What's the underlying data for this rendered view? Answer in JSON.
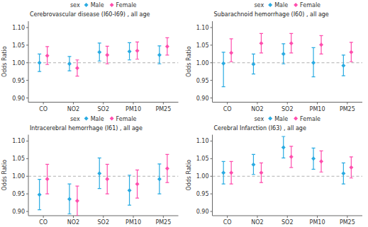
{
  "chart_data": [
    {
      "type": "errorbar",
      "title": "Cerebrovascular disease (I60-I69) , all age",
      "ylabel": "Odds Ratio",
      "categories": [
        "CO",
        "NO2",
        "SO2",
        "PM10",
        "PM25"
      ],
      "series": [
        {
          "name": "Male",
          "color": "#29ABE2",
          "marker": "diamond",
          "values": [
            1.0,
            0.997,
            1.03,
            1.032,
            1.022
          ],
          "lower": [
            0.975,
            0.977,
            1.005,
            1.008,
            0.997
          ],
          "upper": [
            1.025,
            1.018,
            1.056,
            1.057,
            1.048
          ]
        },
        {
          "name": "Female",
          "color": "#FF4DAD",
          "marker": "diamond",
          "values": [
            1.02,
            0.985,
            1.022,
            1.034,
            1.046
          ],
          "lower": [
            0.995,
            0.962,
            0.997,
            1.01,
            1.022
          ],
          "upper": [
            1.046,
            1.008,
            1.047,
            1.059,
            1.071
          ]
        }
      ],
      "ylim": [
        0.888,
        1.118
      ],
      "yticks": [
        {
          "value": 0.9,
          "label": "0.90"
        },
        {
          "value": 0.95,
          "label": "0.95"
        },
        {
          "value": 1.0,
          "label": "1.00"
        },
        {
          "value": 1.05,
          "label": "1.05"
        },
        {
          "value": 1.1,
          "label": "1.10"
        }
      ],
      "reference_line": 1.0,
      "legend": "top",
      "legend_title": "sex",
      "grid": false
    },
    {
      "type": "errorbar",
      "title": "Subarachnoid hemorrhage (I60) , all age",
      "ylabel": "Odds Ratio",
      "categories": [
        "CO",
        "NO2",
        "SO2",
        "PM10",
        "PM25"
      ],
      "series": [
        {
          "name": "Male",
          "color": "#29ABE2",
          "marker": "diamond",
          "values": [
            0.998,
            0.996,
            1.025,
            1.0,
            0.992
          ],
          "lower": [
            0.932,
            0.968,
            0.997,
            0.96,
            0.963
          ],
          "upper": [
            1.03,
            1.025,
            1.054,
            1.043,
            1.022
          ]
        },
        {
          "name": "Female",
          "color": "#FF4DAD",
          "marker": "diamond",
          "values": [
            1.028,
            1.055,
            1.055,
            1.051,
            1.03
          ],
          "lower": [
            1.003,
            1.028,
            1.028,
            1.025,
            1.003
          ],
          "upper": [
            1.068,
            1.083,
            1.083,
            1.077,
            1.058
          ]
        }
      ],
      "ylim": [
        0.888,
        1.118
      ],
      "yticks": [
        {
          "value": 0.9,
          "label": "0.90"
        },
        {
          "value": 0.95,
          "label": "0.95"
        },
        {
          "value": 1.0,
          "label": "1.00"
        },
        {
          "value": 1.05,
          "label": "1.05"
        },
        {
          "value": 1.1,
          "label": "1.10"
        }
      ],
      "reference_line": 1.0,
      "legend": "top",
      "legend_title": "sex",
      "grid": false
    },
    {
      "type": "errorbar",
      "title": "Intracerebral hemorrhage (I61) , all age",
      "ylabel": "Odds Ratio",
      "categories": [
        "CO",
        "NO2",
        "SO2",
        "PM10",
        "PM25"
      ],
      "series": [
        {
          "name": "Male",
          "color": "#29ABE2",
          "marker": "diamond",
          "values": [
            0.948,
            0.935,
            1.008,
            0.96,
            0.992
          ],
          "lower": [
            0.905,
            0.893,
            0.965,
            0.918,
            0.95
          ],
          "upper": [
            0.991,
            0.978,
            1.052,
            1.003,
            1.035
          ]
        },
        {
          "name": "Female",
          "color": "#FF4DAD",
          "marker": "diamond",
          "values": [
            0.992,
            0.93,
            0.992,
            0.978,
            1.022
          ],
          "lower": [
            0.95,
            0.888,
            0.95,
            0.938,
            0.982
          ],
          "upper": [
            1.034,
            0.972,
            1.034,
            1.018,
            1.062
          ]
        }
      ],
      "ylim": [
        0.888,
        1.118
      ],
      "yticks": [
        {
          "value": 0.9,
          "label": "0.90"
        },
        {
          "value": 0.95,
          "label": "0.95"
        },
        {
          "value": 1.0,
          "label": "1.00"
        },
        {
          "value": 1.05,
          "label": "1.05"
        },
        {
          "value": 1.1,
          "label": "1.10"
        }
      ],
      "reference_line": 1.0,
      "legend": "top",
      "legend_title": "sex",
      "grid": false
    },
    {
      "type": "errorbar",
      "title": "Cerebral Infarction  (I63) , all age",
      "ylabel": "Odds Ratio",
      "categories": [
        "CO",
        "NO2",
        "SO2",
        "PM10",
        "PM25"
      ],
      "series": [
        {
          "name": "Male",
          "color": "#29ABE2",
          "marker": "diamond",
          "values": [
            1.01,
            1.033,
            1.082,
            1.05,
            1.008
          ],
          "lower": [
            0.978,
            1.005,
            1.052,
            1.02,
            0.978
          ],
          "upper": [
            1.042,
            1.062,
            1.113,
            1.08,
            1.038
          ]
        },
        {
          "name": "Female",
          "color": "#FF4DAD",
          "marker": "diamond",
          "values": [
            1.01,
            1.01,
            1.055,
            1.042,
            1.025
          ],
          "lower": [
            0.978,
            0.982,
            1.025,
            1.012,
            0.995
          ],
          "upper": [
            1.042,
            1.038,
            1.085,
            1.072,
            1.055
          ]
        }
      ],
      "ylim": [
        0.888,
        1.118
      ],
      "yticks": [
        {
          "value": 0.9,
          "label": "0.90"
        },
        {
          "value": 0.95,
          "label": "0.95"
        },
        {
          "value": 1.0,
          "label": "1.00"
        },
        {
          "value": 1.05,
          "label": "1.05"
        },
        {
          "value": 1.1,
          "label": "1.10"
        }
      ],
      "reference_line": 1.0,
      "legend": "top",
      "legend_title": "sex",
      "grid": false
    }
  ]
}
